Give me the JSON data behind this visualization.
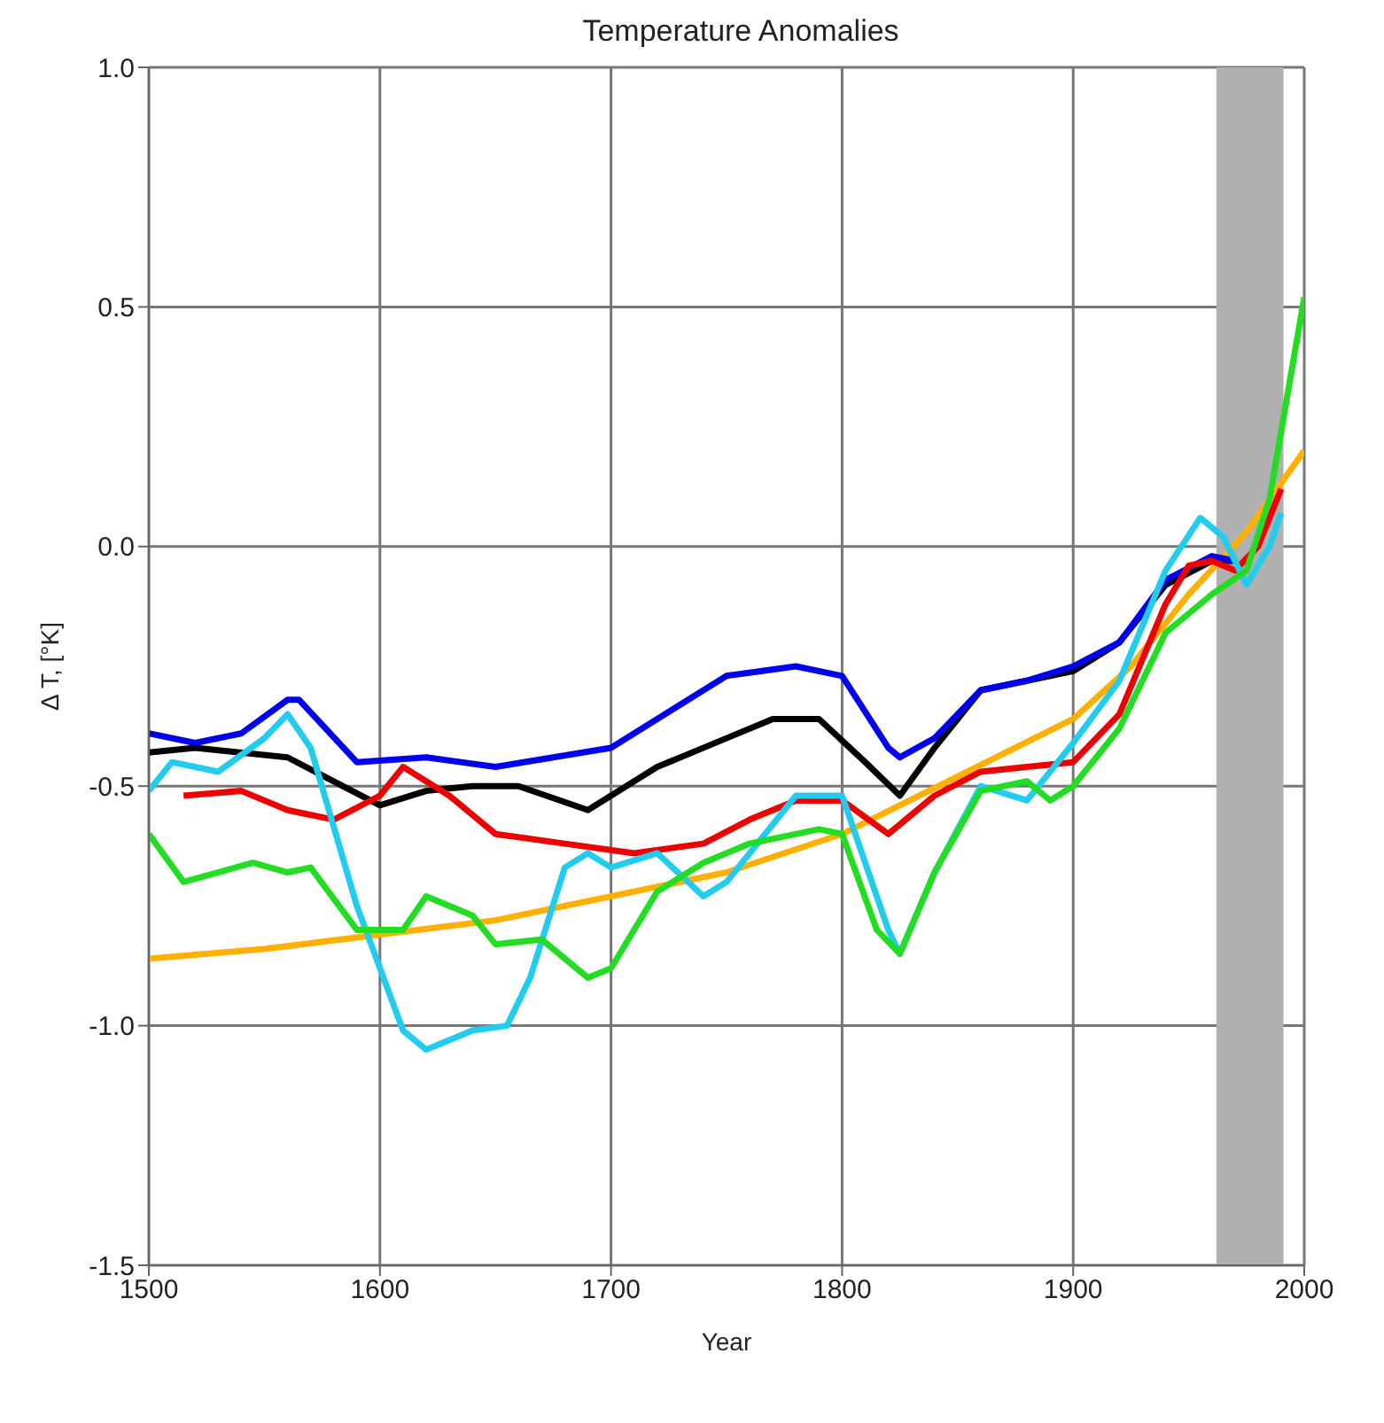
{
  "chart_data": {
    "type": "line",
    "title": "Temperature Anomalies",
    "xlabel": "Year",
    "ylabel": "Δ T, [°K]",
    "xlim": [
      1500,
      2000
    ],
    "xticks": [
      1500,
      1600,
      1700,
      1800,
      1900,
      2000
    ],
    "ylim": [
      -1.5,
      1.0
    ],
    "yticks": [
      {
        "value": -1.5,
        "label": "-1.5"
      },
      {
        "value": -1,
        "label": "-1.0"
      },
      {
        "value": -0.5,
        "label": "-0.5"
      },
      {
        "value": 0,
        "label": "0.0"
      },
      {
        "value": 0.5,
        "label": "0.5"
      },
      {
        "value": 1,
        "label": "1.0"
      }
    ],
    "grid": true,
    "legend": false,
    "marker": "none",
    "line_style": "solid",
    "bands": [
      {
        "axis": "x",
        "from": 1962,
        "to": 1991,
        "color": "#b0b0b0"
      }
    ],
    "series": [
      {
        "color": "#ffb000",
        "x": [
          1500,
          1550,
          1600,
          1650,
          1700,
          1750,
          1800,
          1850,
          1900,
          1925,
          1950,
          1975,
          2000
        ],
        "values": [
          -0.86,
          -0.84,
          -0.81,
          -0.78,
          -0.73,
          -0.68,
          -0.6,
          -0.48,
          -0.36,
          -0.25,
          -0.1,
          0.03,
          0.2
        ]
      },
      {
        "color": "#000000",
        "x": [
          1500,
          1520,
          1560,
          1580,
          1600,
          1620,
          1640,
          1660,
          1690,
          1720,
          1750,
          1770,
          1790,
          1810,
          1825,
          1840,
          1860,
          1880,
          1900,
          1920,
          1940,
          1960,
          1970
        ],
        "values": [
          -0.43,
          -0.42,
          -0.44,
          -0.49,
          -0.54,
          -0.51,
          -0.5,
          -0.5,
          -0.55,
          -0.46,
          -0.4,
          -0.36,
          -0.36,
          -0.45,
          -0.52,
          -0.42,
          -0.3,
          -0.28,
          -0.26,
          -0.2,
          -0.08,
          -0.03,
          -0.03
        ]
      },
      {
        "color": "#0000ee",
        "x": [
          1500,
          1520,
          1540,
          1560,
          1565,
          1590,
          1620,
          1650,
          1700,
          1730,
          1750,
          1780,
          1800,
          1820,
          1825,
          1840,
          1860,
          1880,
          1900,
          1920,
          1940,
          1960,
          1970
        ],
        "values": [
          -0.39,
          -0.41,
          -0.39,
          -0.32,
          -0.32,
          -0.45,
          -0.44,
          -0.46,
          -0.42,
          -0.33,
          -0.27,
          -0.25,
          -0.27,
          -0.42,
          -0.44,
          -0.4,
          -0.3,
          -0.28,
          -0.25,
          -0.2,
          -0.07,
          -0.02,
          -0.03
        ]
      },
      {
        "color": "#ee0000",
        "x": [
          1515,
          1540,
          1560,
          1580,
          1600,
          1610,
          1630,
          1650,
          1680,
          1710,
          1740,
          1760,
          1780,
          1800,
          1820,
          1840,
          1860,
          1880,
          1900,
          1920,
          1940,
          1950,
          1960,
          1970,
          1980,
          1990
        ],
        "values": [
          -0.52,
          -0.51,
          -0.55,
          -0.57,
          -0.52,
          -0.46,
          -0.52,
          -0.6,
          -0.62,
          -0.64,
          -0.62,
          -0.57,
          -0.53,
          -0.53,
          -0.6,
          -0.52,
          -0.47,
          -0.46,
          -0.45,
          -0.35,
          -0.12,
          -0.04,
          -0.03,
          -0.05,
          0.0,
          0.12
        ]
      },
      {
        "color": "#22ccee",
        "x": [
          1500,
          1510,
          1530,
          1550,
          1560,
          1570,
          1590,
          1610,
          1620,
          1640,
          1655,
          1665,
          1680,
          1690,
          1700,
          1720,
          1740,
          1750,
          1770,
          1780,
          1800,
          1820,
          1825,
          1840,
          1860,
          1880,
          1900,
          1920,
          1940,
          1955,
          1965,
          1975,
          1985,
          1990
        ],
        "values": [
          -0.51,
          -0.45,
          -0.47,
          -0.4,
          -0.35,
          -0.42,
          -0.75,
          -1.01,
          -1.05,
          -1.01,
          -1.0,
          -0.9,
          -0.67,
          -0.64,
          -0.67,
          -0.64,
          -0.73,
          -0.7,
          -0.58,
          -0.52,
          -0.52,
          -0.8,
          -0.85,
          -0.68,
          -0.5,
          -0.53,
          -0.41,
          -0.28,
          -0.05,
          0.06,
          0.02,
          -0.08,
          0.0,
          0.07
        ]
      },
      {
        "color": "#22dd22",
        "x": [
          1500,
          1515,
          1530,
          1545,
          1560,
          1570,
          1590,
          1610,
          1620,
          1640,
          1650,
          1670,
          1690,
          1700,
          1720,
          1740,
          1760,
          1790,
          1800,
          1815,
          1825,
          1840,
          1860,
          1880,
          1890,
          1900,
          1920,
          1940,
          1960,
          1975,
          1985,
          2000
        ],
        "values": [
          -0.6,
          -0.7,
          -0.68,
          -0.66,
          -0.68,
          -0.67,
          -0.8,
          -0.8,
          -0.73,
          -0.77,
          -0.83,
          -0.82,
          -0.9,
          -0.88,
          -0.72,
          -0.66,
          -0.62,
          -0.59,
          -0.6,
          -0.8,
          -0.85,
          -0.68,
          -0.51,
          -0.49,
          -0.53,
          -0.5,
          -0.38,
          -0.18,
          -0.1,
          -0.05,
          0.1,
          0.52
        ]
      }
    ]
  }
}
